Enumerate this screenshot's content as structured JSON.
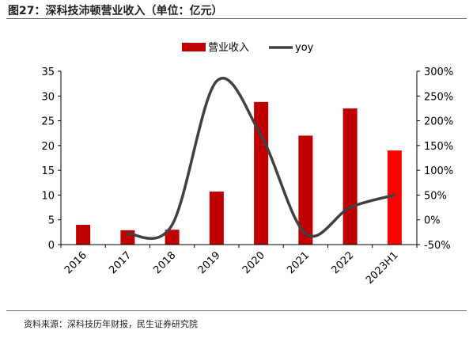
{
  "header": {
    "title": "图27：深科技沛顿营业收入（单位：亿元）"
  },
  "footer": {
    "source": "资料来源：深科技历年财报，民生证券研究院"
  },
  "colors": {
    "bar": "#c00000",
    "bar_highlight": "#ff0000",
    "line": "#404040",
    "axis": "#000000"
  },
  "chart_data": {
    "type": "bar+line",
    "title": "",
    "categories": [
      "2016",
      "2017",
      "2018",
      "2019",
      "2020",
      "2021",
      "2022",
      "2023H1"
    ],
    "series": [
      {
        "name": "营业收入",
        "type": "bar",
        "axis": "left",
        "values": [
          4.0,
          2.9,
          3.0,
          10.7,
          28.8,
          22.0,
          27.5,
          19.0
        ]
      },
      {
        "name": "yoy",
        "type": "line",
        "axis": "right",
        "values": [
          null,
          -0.28,
          -0.1,
          2.8,
          1.7,
          -0.28,
          0.25,
          0.5
        ]
      }
    ],
    "y_left": {
      "min": 0,
      "max": 35,
      "step": 5,
      "ticks": [
        "0",
        "5",
        "10",
        "15",
        "20",
        "25",
        "30",
        "35"
      ]
    },
    "y_right": {
      "min": -0.5,
      "max": 3.0,
      "step": 0.5,
      "ticks": [
        "-50%",
        "0%",
        "50%",
        "100%",
        "150%",
        "200%",
        "250%",
        "300%"
      ]
    },
    "legend": {
      "position": "top",
      "items": [
        "营业收入",
        "yoy"
      ]
    },
    "grid": false
  }
}
